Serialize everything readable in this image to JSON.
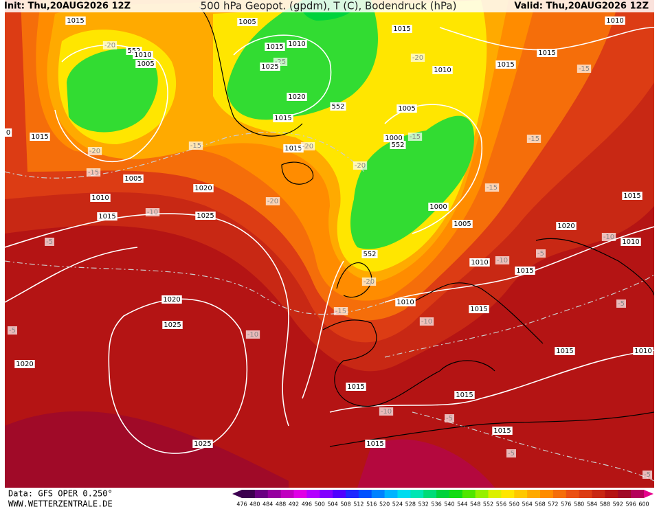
{
  "header": {
    "init": "Init: Thu,20AUG2026 12Z",
    "title": "500 hPa Geopot. (gpdm), T (C), Bodendruck (hPa)",
    "valid": "Valid: Thu,20AUG2026 12Z"
  },
  "footer": {
    "source": "Data: GFS OPER 0.250°",
    "website": "WWW.WETTERZENTRALE.DE"
  },
  "colorbar": {
    "ticks": [
      476,
      480,
      484,
      488,
      492,
      496,
      500,
      504,
      508,
      512,
      516,
      520,
      524,
      528,
      532,
      536,
      540,
      544,
      548,
      552,
      556,
      560,
      564,
      568,
      572,
      576,
      580,
      584,
      588,
      592,
      596,
      600
    ],
    "colors": [
      "#3c0050",
      "#6a0082",
      "#9600a0",
      "#c000c0",
      "#e000e6",
      "#b400ff",
      "#8200ff",
      "#5000ff",
      "#1e28ff",
      "#0050ff",
      "#0082ff",
      "#00b4ff",
      "#00dcf0",
      "#00e6b4",
      "#00dc78",
      "#00d23c",
      "#14dc14",
      "#50e600",
      "#96f000",
      "#dcf000",
      "#ffe600",
      "#ffc800",
      "#ffaa00",
      "#ff8c00",
      "#f56e0a",
      "#eb5014",
      "#dc3c14",
      "#c82814",
      "#b41414",
      "#a00a28",
      "#b4005a"
    ],
    "low_color": "#3c0050",
    "high_color": "#e6008c"
  },
  "contour_labels": [
    "1015",
    "1005",
    "1015",
    "1010",
    "1015",
    "1010",
    "-20",
    "552",
    "1010",
    "1005",
    "-25",
    "1025",
    "-20",
    "1015",
    "1015",
    "1010",
    "-15",
    "1020",
    "552",
    "1005",
    "1015",
    "0",
    "1015",
    "1000",
    "-15",
    "552",
    "-15",
    "-15",
    "1015",
    "-20",
    "-20",
    "-20",
    "-15",
    "1005",
    "1020",
    "-15",
    "1015",
    "1010",
    "-20",
    "1000",
    "-10",
    "1015",
    "1025",
    "1005",
    "1020",
    "-10",
    "1010",
    "-5",
    "552",
    "-5",
    "-10",
    "1010",
    "1015",
    "-20",
    "1020",
    "1010",
    "1015",
    "-5",
    "-15",
    "-10",
    "1025",
    "-5",
    "-10",
    "1015",
    "1010",
    "1020",
    "1015",
    "1015",
    "-10",
    "-5",
    "1015",
    "1025",
    "1015",
    "-5",
    "-5"
  ]
}
